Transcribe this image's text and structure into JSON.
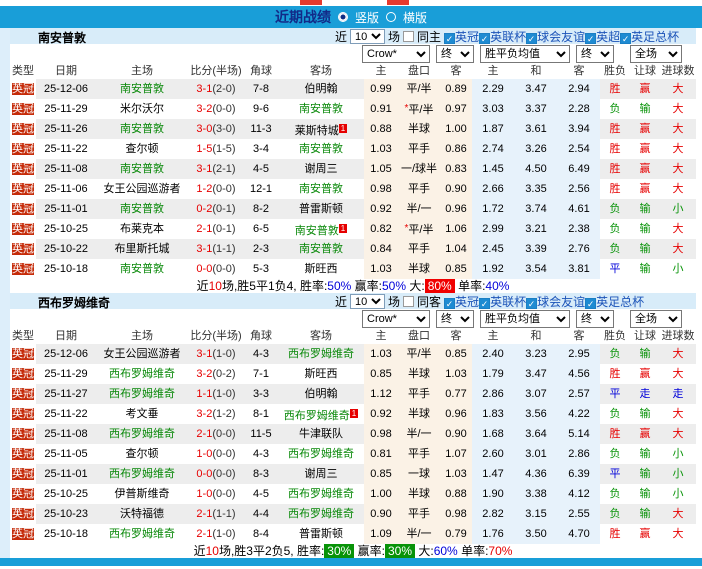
{
  "topbar": {
    "title": "近期战绩",
    "radio_selected": "竖版",
    "radio_unselected": "横版"
  },
  "columns": [
    "类型",
    "日期",
    "主场",
    "比分(半场)",
    "角球",
    "客场",
    "主",
    "盘口",
    "客",
    "主",
    "和",
    "客",
    "胜负",
    "让球",
    "进球数"
  ],
  "controls": {
    "odds_source": "Crow*",
    "final_a": "终",
    "avg": "胜平负均值",
    "final_b": "终",
    "scope": "全场"
  },
  "sections": [
    {
      "team": "南安普敦",
      "filter": {
        "near": "近",
        "count": "10",
        "games": "场",
        "same": "同主",
        "leagues": [
          "英冠",
          "英联杯",
          "球会友谊",
          "英超",
          "英足总杯"
        ]
      },
      "rows": [
        {
          "type": "英冠",
          "date": "25-12-06",
          "home": "南安普敦",
          "home_focus": true,
          "ft": "3-1",
          "ht": "(2-0)",
          "corner": "7-8",
          "away": "伯明翰",
          "away_focus": false,
          "away_sup": "",
          "star": false,
          "w1": "0.99",
          "hcap": "平/半",
          "w2": "0.89",
          "m1": "2.29",
          "m2": "3.47",
          "m3": "2.94",
          "r": [
            "胜",
            "赢",
            "大"
          ],
          "rc": [
            "r",
            "r",
            "r"
          ]
        },
        {
          "type": "英冠",
          "date": "25-11-29",
          "home": "米尔沃尔",
          "home_focus": false,
          "ft": "3-2",
          "ht": "(0-0)",
          "corner": "9-6",
          "away": "南安普敦",
          "away_focus": true,
          "away_sup": "",
          "star": true,
          "w1": "0.91",
          "hcap": "平/半",
          "w2": "0.97",
          "m1": "3.03",
          "m2": "3.37",
          "m3": "2.28",
          "r": [
            "负",
            "输",
            "大"
          ],
          "rc": [
            "g",
            "g",
            "r"
          ]
        },
        {
          "type": "英冠",
          "date": "25-11-26",
          "home": "南安普敦",
          "home_focus": true,
          "ft": "3-0",
          "ht": "(3-0)",
          "corner": "11-3",
          "away": "莱斯特城",
          "away_focus": false,
          "away_sup": "1",
          "star": false,
          "w1": "0.88",
          "hcap": "半球",
          "w2": "1.00",
          "m1": "1.87",
          "m2": "3.61",
          "m3": "3.94",
          "r": [
            "胜",
            "赢",
            "大"
          ],
          "rc": [
            "r",
            "r",
            "r"
          ]
        },
        {
          "type": "英冠",
          "date": "25-11-22",
          "home": "查尔顿",
          "home_focus": false,
          "ft": "1-5",
          "ht": "(1-5)",
          "corner": "3-4",
          "away": "南安普敦",
          "away_focus": true,
          "away_sup": "",
          "star": false,
          "w1": "1.03",
          "hcap": "平手",
          "w2": "0.86",
          "m1": "2.74",
          "m2": "3.26",
          "m3": "2.54",
          "r": [
            "胜",
            "赢",
            "大"
          ],
          "rc": [
            "r",
            "r",
            "r"
          ]
        },
        {
          "type": "英冠",
          "date": "25-11-08",
          "home": "南安普敦",
          "home_focus": true,
          "ft": "3-1",
          "ht": "(2-1)",
          "corner": "4-5",
          "away": "谢周三",
          "away_focus": false,
          "away_sup": "",
          "star": false,
          "w1": "1.05",
          "hcap": "一/球半",
          "w2": "0.83",
          "m1": "1.45",
          "m2": "4.50",
          "m3": "6.49",
          "r": [
            "胜",
            "赢",
            "大"
          ],
          "rc": [
            "r",
            "r",
            "r"
          ]
        },
        {
          "type": "英冠",
          "date": "25-11-06",
          "home": "女王公园巡游者",
          "home_focus": false,
          "ft": "1-2",
          "ht": "(0-0)",
          "corner": "12-1",
          "away": "南安普敦",
          "away_focus": true,
          "away_sup": "",
          "star": false,
          "w1": "0.98",
          "hcap": "平手",
          "w2": "0.90",
          "m1": "2.66",
          "m2": "3.35",
          "m3": "2.56",
          "r": [
            "胜",
            "赢",
            "大"
          ],
          "rc": [
            "r",
            "r",
            "r"
          ]
        },
        {
          "type": "英冠",
          "date": "25-11-01",
          "home": "南安普敦",
          "home_focus": true,
          "ft": "0-2",
          "ht": "(0-1)",
          "corner": "8-2",
          "away": "普雷斯顿",
          "away_focus": false,
          "away_sup": "",
          "star": false,
          "w1": "0.92",
          "hcap": "半/一",
          "w2": "0.96",
          "m1": "1.72",
          "m2": "3.74",
          "m3": "4.61",
          "r": [
            "负",
            "输",
            "小"
          ],
          "rc": [
            "g",
            "g",
            "g"
          ]
        },
        {
          "type": "英冠",
          "date": "25-10-25",
          "home": "布莱克本",
          "home_focus": false,
          "ft": "2-1",
          "ht": "(0-1)",
          "corner": "6-5",
          "away": "南安普敦",
          "away_focus": true,
          "away_sup": "1",
          "star": true,
          "w1": "0.82",
          "hcap": "平/半",
          "w2": "1.06",
          "m1": "2.99",
          "m2": "3.21",
          "m3": "2.38",
          "r": [
            "负",
            "输",
            "大"
          ],
          "rc": [
            "g",
            "g",
            "r"
          ]
        },
        {
          "type": "英冠",
          "date": "25-10-22",
          "home": "布里斯托城",
          "home_focus": false,
          "ft": "3-1",
          "ht": "(1-1)",
          "corner": "2-3",
          "away": "南安普敦",
          "away_focus": true,
          "away_sup": "",
          "star": false,
          "w1": "0.84",
          "hcap": "平手",
          "w2": "1.04",
          "m1": "2.45",
          "m2": "3.39",
          "m3": "2.76",
          "r": [
            "负",
            "输",
            "大"
          ],
          "rc": [
            "g",
            "g",
            "r"
          ]
        },
        {
          "type": "英冠",
          "date": "25-10-18",
          "home": "南安普敦",
          "home_focus": true,
          "ft": "0-0",
          "ht": "(0-0)",
          "corner": "5-3",
          "away": "斯旺西",
          "away_focus": false,
          "away_sup": "",
          "star": false,
          "w1": "1.03",
          "hcap": "半球",
          "w2": "0.85",
          "m1": "1.92",
          "m2": "3.54",
          "m3": "3.81",
          "r": [
            "平",
            "输",
            "小"
          ],
          "rc": [
            "b",
            "g",
            "g"
          ]
        }
      ],
      "summary": [
        {
          "t": "近"
        },
        {
          "t": "10",
          "c": "r"
        },
        {
          "t": "场,胜5平1负4, 胜率:"
        },
        {
          "t": "50%",
          "c": "b"
        },
        {
          "t": " 赢率:"
        },
        {
          "t": "50%",
          "c": "b"
        },
        {
          "t": " 大:"
        },
        {
          "t": "80%",
          "badge": "red"
        },
        {
          "t": " 单率:"
        },
        {
          "t": "40%",
          "c": "b"
        }
      ]
    },
    {
      "team": "西布罗姆维奇",
      "filter": {
        "near": "近",
        "count": "10",
        "games": "场",
        "same": "同客",
        "leagues": [
          "英冠",
          "英联杯",
          "球会友谊",
          "英足总杯"
        ]
      },
      "rows": [
        {
          "type": "英冠",
          "date": "25-12-06",
          "home": "女王公园巡游者",
          "home_focus": false,
          "ft": "3-1",
          "ht": "(1-0)",
          "corner": "4-3",
          "away": "西布罗姆维奇",
          "away_focus": true,
          "away_sup": "",
          "star": false,
          "w1": "1.03",
          "hcap": "平/半",
          "w2": "0.85",
          "m1": "2.40",
          "m2": "3.23",
          "m3": "2.95",
          "r": [
            "负",
            "输",
            "大"
          ],
          "rc": [
            "g",
            "g",
            "r"
          ]
        },
        {
          "type": "英冠",
          "date": "25-11-29",
          "home": "西布罗姆维奇",
          "home_focus": true,
          "ft": "3-2",
          "ht": "(0-2)",
          "corner": "7-1",
          "away": "斯旺西",
          "away_focus": false,
          "away_sup": "",
          "star": false,
          "w1": "0.85",
          "hcap": "半球",
          "w2": "1.03",
          "m1": "1.79",
          "m2": "3.47",
          "m3": "4.56",
          "r": [
            "胜",
            "赢",
            "大"
          ],
          "rc": [
            "r",
            "r",
            "r"
          ]
        },
        {
          "type": "英冠",
          "date": "25-11-27",
          "home": "西布罗姆维奇",
          "home_focus": true,
          "ft": "1-1",
          "ht": "(1-0)",
          "corner": "3-3",
          "away": "伯明翰",
          "away_focus": false,
          "away_sup": "",
          "star": false,
          "w1": "1.12",
          "hcap": "平手",
          "w2": "0.77",
          "m1": "2.86",
          "m2": "3.07",
          "m3": "2.57",
          "r": [
            "平",
            "走",
            "走"
          ],
          "rc": [
            "b",
            "b",
            "b"
          ]
        },
        {
          "type": "英冠",
          "date": "25-11-22",
          "home": "考文垂",
          "home_focus": false,
          "ft": "3-2",
          "ht": "(1-2)",
          "corner": "8-1",
          "away": "西布罗姆维奇",
          "away_focus": true,
          "away_sup": "1",
          "star": false,
          "w1": "0.92",
          "hcap": "半球",
          "w2": "0.96",
          "m1": "1.83",
          "m2": "3.56",
          "m3": "4.22",
          "r": [
            "负",
            "输",
            "大"
          ],
          "rc": [
            "g",
            "g",
            "r"
          ]
        },
        {
          "type": "英冠",
          "date": "25-11-08",
          "home": "西布罗姆维奇",
          "home_focus": true,
          "ft": "2-1",
          "ht": "(0-0)",
          "corner": "11-5",
          "away": "牛津联队",
          "away_focus": false,
          "away_sup": "",
          "star": false,
          "w1": "0.98",
          "hcap": "半/一",
          "w2": "0.90",
          "m1": "1.68",
          "m2": "3.64",
          "m3": "5.14",
          "r": [
            "胜",
            "赢",
            "大"
          ],
          "rc": [
            "r",
            "r",
            "r"
          ]
        },
        {
          "type": "英冠",
          "date": "25-11-05",
          "home": "查尔顿",
          "home_focus": false,
          "ft": "1-0",
          "ht": "(0-0)",
          "corner": "4-3",
          "away": "西布罗姆维奇",
          "away_focus": true,
          "away_sup": "",
          "star": false,
          "w1": "0.81",
          "hcap": "平手",
          "w2": "1.07",
          "m1": "2.60",
          "m2": "3.01",
          "m3": "2.86",
          "r": [
            "负",
            "输",
            "小"
          ],
          "rc": [
            "g",
            "g",
            "g"
          ]
        },
        {
          "type": "英冠",
          "date": "25-11-01",
          "home": "西布罗姆维奇",
          "home_focus": true,
          "ft": "0-0",
          "ht": "(0-0)",
          "corner": "8-3",
          "away": "谢周三",
          "away_focus": false,
          "away_sup": "",
          "star": false,
          "w1": "0.85",
          "hcap": "一球",
          "w2": "1.03",
          "m1": "1.47",
          "m2": "4.36",
          "m3": "6.39",
          "r": [
            "平",
            "输",
            "小"
          ],
          "rc": [
            "b",
            "g",
            "g"
          ]
        },
        {
          "type": "英冠",
          "date": "25-10-25",
          "home": "伊普斯维奇",
          "home_focus": false,
          "ft": "1-0",
          "ht": "(0-0)",
          "corner": "4-5",
          "away": "西布罗姆维奇",
          "away_focus": true,
          "away_sup": "",
          "star": false,
          "w1": "1.00",
          "hcap": "半球",
          "w2": "0.88",
          "m1": "1.90",
          "m2": "3.38",
          "m3": "4.12",
          "r": [
            "负",
            "输",
            "小"
          ],
          "rc": [
            "g",
            "g",
            "g"
          ]
        },
        {
          "type": "英冠",
          "date": "25-10-23",
          "home": "沃特福德",
          "home_focus": false,
          "ft": "2-1",
          "ht": "(1-1)",
          "corner": "4-4",
          "away": "西布罗姆维奇",
          "away_focus": true,
          "away_sup": "",
          "star": false,
          "w1": "0.90",
          "hcap": "平手",
          "w2": "0.98",
          "m1": "2.82",
          "m2": "3.15",
          "m3": "2.55",
          "r": [
            "负",
            "输",
            "大"
          ],
          "rc": [
            "g",
            "g",
            "r"
          ]
        },
        {
          "type": "英冠",
          "date": "25-10-18",
          "home": "西布罗姆维奇",
          "home_focus": true,
          "ft": "2-1",
          "ht": "(1-0)",
          "corner": "8-4",
          "away": "普雷斯顿",
          "away_focus": false,
          "away_sup": "",
          "star": false,
          "w1": "1.09",
          "hcap": "半/一",
          "w2": "0.79",
          "m1": "1.76",
          "m2": "3.50",
          "m3": "4.70",
          "r": [
            "胜",
            "赢",
            "大"
          ],
          "rc": [
            "r",
            "r",
            "r"
          ]
        }
      ],
      "summary": [
        {
          "t": "近"
        },
        {
          "t": "10",
          "c": "r"
        },
        {
          "t": "场,胜3平2负5, 胜率:"
        },
        {
          "t": "30%",
          "badge": "green"
        },
        {
          "t": " 赢率:"
        },
        {
          "t": "30%",
          "badge": "green"
        },
        {
          "t": " 大:"
        },
        {
          "t": "60%",
          "c": "b"
        },
        {
          "t": " 单率:"
        },
        {
          "t": "70%",
          "c": "r"
        }
      ]
    }
  ]
}
